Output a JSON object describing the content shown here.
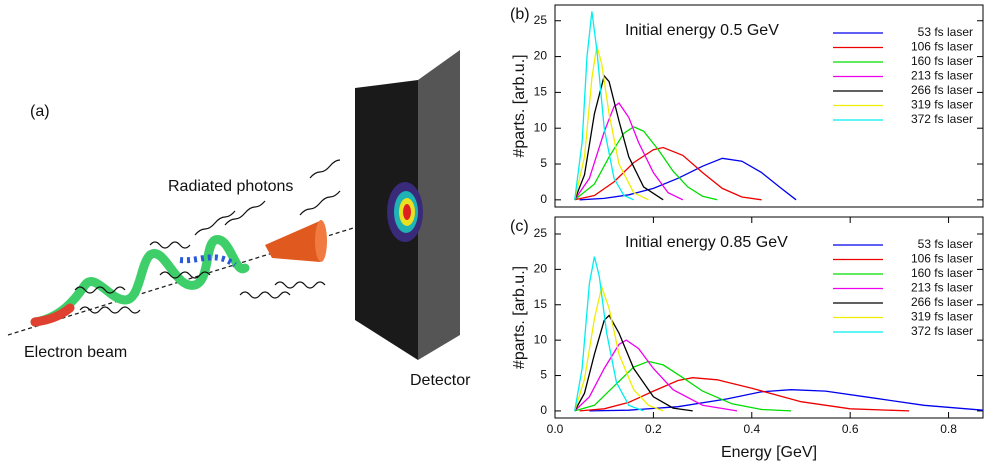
{
  "diagram": {
    "panel": "(a)",
    "photons": "Radiated photons",
    "beam": "Electron beam",
    "detector": "Detector"
  },
  "chart_data": [
    {
      "type": "line",
      "title": "(b)",
      "annotation": "Initial energy 0.5 GeV",
      "ylabel": "#parts. [arb.u.]",
      "xlim": [
        0,
        0.87
      ],
      "ylim": [
        -1,
        27.2
      ],
      "yticks": [
        0,
        5,
        10,
        15,
        20,
        25
      ],
      "legend": "upper right",
      "series": [
        {
          "name": "53 fs laser",
          "color": "#0000ee",
          "x": [
            0.05,
            0.1,
            0.15,
            0.2,
            0.25,
            0.3,
            0.34,
            0.38,
            0.42,
            0.46,
            0.49
          ],
          "values": [
            0,
            0.2,
            0.7,
            1.6,
            3,
            4.7,
            5.8,
            5.4,
            3.8,
            1.6,
            0
          ]
        },
        {
          "name": "106 fs laser",
          "color": "#ee0000",
          "x": [
            0.04,
            0.08,
            0.12,
            0.16,
            0.2,
            0.22,
            0.26,
            0.3,
            0.34,
            0.38,
            0.42
          ],
          "values": [
            0,
            0.6,
            2.5,
            5.2,
            7,
            7.3,
            6.2,
            3.8,
            1.6,
            0.4,
            0
          ]
        },
        {
          "name": "160 fs laser",
          "color": "#00dd00",
          "x": [
            0.04,
            0.08,
            0.11,
            0.14,
            0.16,
            0.18,
            0.21,
            0.24,
            0.27,
            0.3,
            0.33
          ],
          "values": [
            0,
            2.2,
            6,
            9.3,
            10.2,
            9.6,
            7,
            4,
            1.8,
            0.5,
            0
          ]
        },
        {
          "name": "213 fs laser",
          "color": "#ee00ee",
          "x": [
            0.04,
            0.07,
            0.1,
            0.12,
            0.13,
            0.15,
            0.17,
            0.2,
            0.23,
            0.26
          ],
          "values": [
            0,
            3,
            9.5,
            13,
            13.5,
            11.5,
            8,
            3.8,
            1,
            0
          ]
        },
        {
          "name": "266 fs laser",
          "color": "#000000",
          "x": [
            0.04,
            0.06,
            0.08,
            0.1,
            0.11,
            0.13,
            0.15,
            0.18,
            0.22
          ],
          "values": [
            0,
            3.5,
            12,
            17.3,
            16.5,
            11,
            6,
            1.8,
            0
          ]
        },
        {
          "name": "319 fs laser",
          "color": "#eeee00",
          "x": [
            0.04,
            0.06,
            0.075,
            0.085,
            0.095,
            0.11,
            0.13,
            0.16,
            0.19
          ],
          "values": [
            0,
            6,
            17,
            21.5,
            19,
            12,
            5,
            1,
            0
          ]
        },
        {
          "name": "372 fs laser",
          "color": "#00eeee",
          "x": [
            0.04,
            0.055,
            0.065,
            0.075,
            0.085,
            0.1,
            0.12,
            0.14,
            0.16
          ],
          "values": [
            0,
            8,
            20,
            26.3,
            21,
            10,
            3,
            0.6,
            0
          ]
        }
      ]
    },
    {
      "type": "line",
      "title": "(c)",
      "annotation": "Initial energy 0.85 GeV",
      "ylabel": "#parts. [arb.u.]",
      "xlabel": "Energy [GeV]",
      "xlim": [
        0,
        0.87
      ],
      "xticks": [
        {
          "value": 0,
          "label": "0.0"
        },
        0.2,
        0.4,
        0.6,
        0.8
      ],
      "ylim": [
        -1,
        27.4
      ],
      "yticks": [
        0,
        5,
        10,
        15,
        20,
        25
      ],
      "legend": "upper right",
      "series": [
        {
          "name": "53 fs laser",
          "color": "#0000ee",
          "x": [
            0.07,
            0.15,
            0.25,
            0.35,
            0.42,
            0.48,
            0.55,
            0.65,
            0.75,
            0.87
          ],
          "values": [
            0,
            0.1,
            0.6,
            1.7,
            2.7,
            3,
            2.8,
            1.8,
            0.8,
            0.1
          ]
        },
        {
          "name": "106 fs laser",
          "color": "#ee0000",
          "x": [
            0.05,
            0.1,
            0.15,
            0.2,
            0.25,
            0.28,
            0.33,
            0.4,
            0.5,
            0.6,
            0.72
          ],
          "values": [
            0,
            0.3,
            1.2,
            2.8,
            4.3,
            4.7,
            4.4,
            3.2,
            1.3,
            0.3,
            0
          ]
        },
        {
          "name": "160 fs laser",
          "color": "#00dd00",
          "x": [
            0.04,
            0.08,
            0.12,
            0.16,
            0.19,
            0.22,
            0.26,
            0.3,
            0.36,
            0.42,
            0.48
          ],
          "values": [
            0,
            0.8,
            3.5,
            6.2,
            7,
            6.5,
            4.7,
            2.8,
            1,
            0.2,
            0
          ]
        },
        {
          "name": "213 fs laser",
          "color": "#ee00ee",
          "x": [
            0.04,
            0.07,
            0.1,
            0.13,
            0.145,
            0.17,
            0.2,
            0.24,
            0.3,
            0.37
          ],
          "values": [
            0,
            2,
            6,
            9.4,
            10,
            8.8,
            6,
            3,
            0.8,
            0
          ]
        },
        {
          "name": "266 fs laser",
          "color": "#000000",
          "x": [
            0.04,
            0.06,
            0.08,
            0.1,
            0.11,
            0.13,
            0.16,
            0.2,
            0.24,
            0.28
          ],
          "values": [
            0,
            2.5,
            8,
            12.8,
            13.5,
            11,
            6,
            2,
            0.4,
            0
          ]
        },
        {
          "name": "319 fs laser",
          "color": "#eeee00",
          "x": [
            0.04,
            0.06,
            0.08,
            0.095,
            0.11,
            0.13,
            0.16,
            0.19,
            0.22
          ],
          "values": [
            0,
            4.5,
            13,
            17.5,
            14.5,
            8,
            3,
            0.8,
            0
          ]
        },
        {
          "name": "372 fs laser",
          "color": "#00eeee",
          "x": [
            0.04,
            0.055,
            0.07,
            0.08,
            0.09,
            0.105,
            0.125,
            0.15,
            0.18
          ],
          "values": [
            0,
            6,
            18,
            21.8,
            19,
            11,
            4,
            0.8,
            0
          ]
        }
      ]
    }
  ]
}
